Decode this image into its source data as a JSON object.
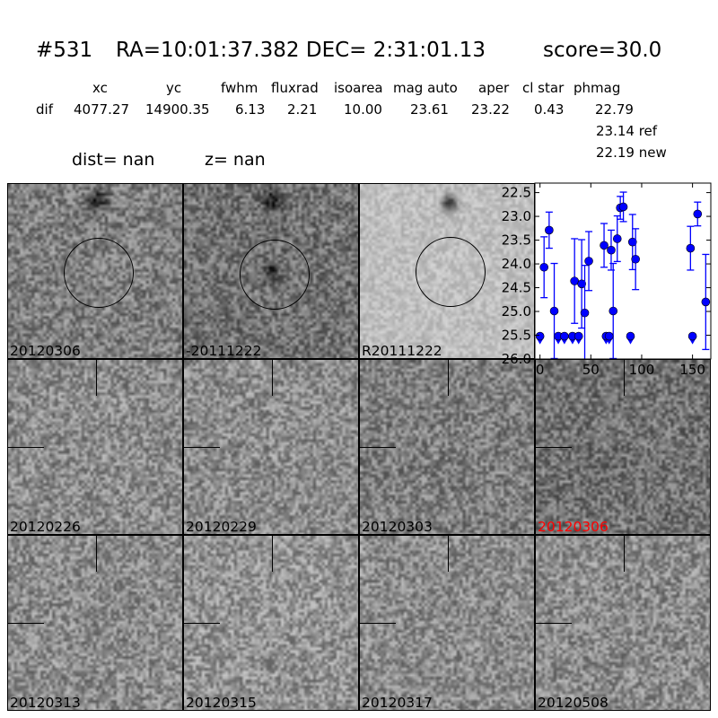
{
  "title": {
    "id": "#531",
    "coords": "RA=10:01:37.382 DEC= 2:31:01.13",
    "score": "score=30.0"
  },
  "table": {
    "columns": [
      "xc",
      "yc",
      "fwhm",
      "fluxrad",
      "isoarea",
      "mag auto",
      "aper",
      "cl star",
      "phmag"
    ],
    "row_label": "dif",
    "values": [
      "4077.27",
      "14900.35",
      "6.13",
      "2.21",
      "10.00",
      "23.61",
      "23.22",
      "0.43",
      "22.79"
    ],
    "ref": "23.14 ref",
    "new": "22.19 new"
  },
  "dist": {
    "dist": "dist=   nan",
    "z": "z=   nan"
  },
  "panels": [
    {
      "label": "20120306",
      "label_color": "#000000",
      "marker": "circle",
      "tone": 0.5
    },
    {
      "label": "-20111222",
      "label_color": "#000000",
      "marker": "circle",
      "tone": 0.45
    },
    {
      "label": "R20111222",
      "label_color": "#000000",
      "marker": "circle",
      "tone": 0.75
    },
    {
      "label": "20120226",
      "label_color": "#000000",
      "marker": "crosshair",
      "tone": 0.55
    },
    {
      "label": "20120229",
      "label_color": "#000000",
      "marker": "crosshair",
      "tone": 0.55
    },
    {
      "label": "20120303",
      "label_color": "#000000",
      "marker": "crosshair",
      "tone": 0.5
    },
    {
      "label": "20120306",
      "label_color": "#ff0000",
      "marker": "crosshair",
      "tone": 0.45
    },
    {
      "label": "20120313",
      "label_color": "#000000",
      "marker": "crosshair",
      "tone": 0.55
    },
    {
      "label": "20120315",
      "label_color": "#000000",
      "marker": "crosshair",
      "tone": 0.58
    },
    {
      "label": "20120317",
      "label_color": "#000000",
      "marker": "crosshair",
      "tone": 0.55
    },
    {
      "label": "20120508",
      "label_color": "#000000",
      "marker": "crosshair",
      "tone": 0.55
    }
  ],
  "chart_data": {
    "type": "scatter",
    "xlim": [
      -5,
      168
    ],
    "ylim": [
      26.0,
      22.3
    ],
    "y_inverted": true,
    "xticks": [
      "0",
      "50",
      "100",
      "150"
    ],
    "yticks": [
      "22.5",
      "23.0",
      "23.5",
      "24.0",
      "24.5",
      "25.0",
      "25.5",
      "26.0"
    ],
    "color": "#0000ff",
    "grid": false,
    "detections": [
      {
        "x": 4,
        "y": 24.07,
        "err": 0.64
      },
      {
        "x": 9,
        "y": 23.29,
        "err": 0.38
      },
      {
        "x": 14,
        "y": 24.99,
        "err": 1.0
      },
      {
        "x": 34,
        "y": 24.36,
        "err": 0.89
      },
      {
        "x": 41,
        "y": 24.42,
        "err": 0.93
      },
      {
        "x": 44,
        "y": 25.03,
        "err": 1.0
      },
      {
        "x": 48,
        "y": 23.94,
        "err": 0.62
      },
      {
        "x": 63,
        "y": 23.61,
        "err": 0.46
      },
      {
        "x": 70,
        "y": 23.71,
        "err": 0.42
      },
      {
        "x": 72,
        "y": 24.99,
        "err": 1.0
      },
      {
        "x": 76,
        "y": 23.47,
        "err": 0.48
      },
      {
        "x": 79,
        "y": 22.82,
        "err": 0.24
      },
      {
        "x": 82,
        "y": 22.8,
        "err": 0.31
      },
      {
        "x": 91,
        "y": 23.54,
        "err": 0.58
      },
      {
        "x": 94,
        "y": 23.9,
        "err": 0.64
      },
      {
        "x": 148,
        "y": 23.67,
        "err": 0.46
      },
      {
        "x": 155,
        "y": 22.95,
        "err": 0.25
      },
      {
        "x": 163,
        "y": 24.8,
        "err": 1.0
      }
    ],
    "upper_limits": [
      {
        "x": 0,
        "y": 25.52
      },
      {
        "x": 18,
        "y": 25.52
      },
      {
        "x": 24,
        "y": 25.52
      },
      {
        "x": 32,
        "y": 25.52
      },
      {
        "x": 38,
        "y": 25.52
      },
      {
        "x": 65,
        "y": 25.52
      },
      {
        "x": 68,
        "y": 25.52
      },
      {
        "x": 89,
        "y": 25.52
      },
      {
        "x": 150,
        "y": 25.52
      }
    ]
  }
}
